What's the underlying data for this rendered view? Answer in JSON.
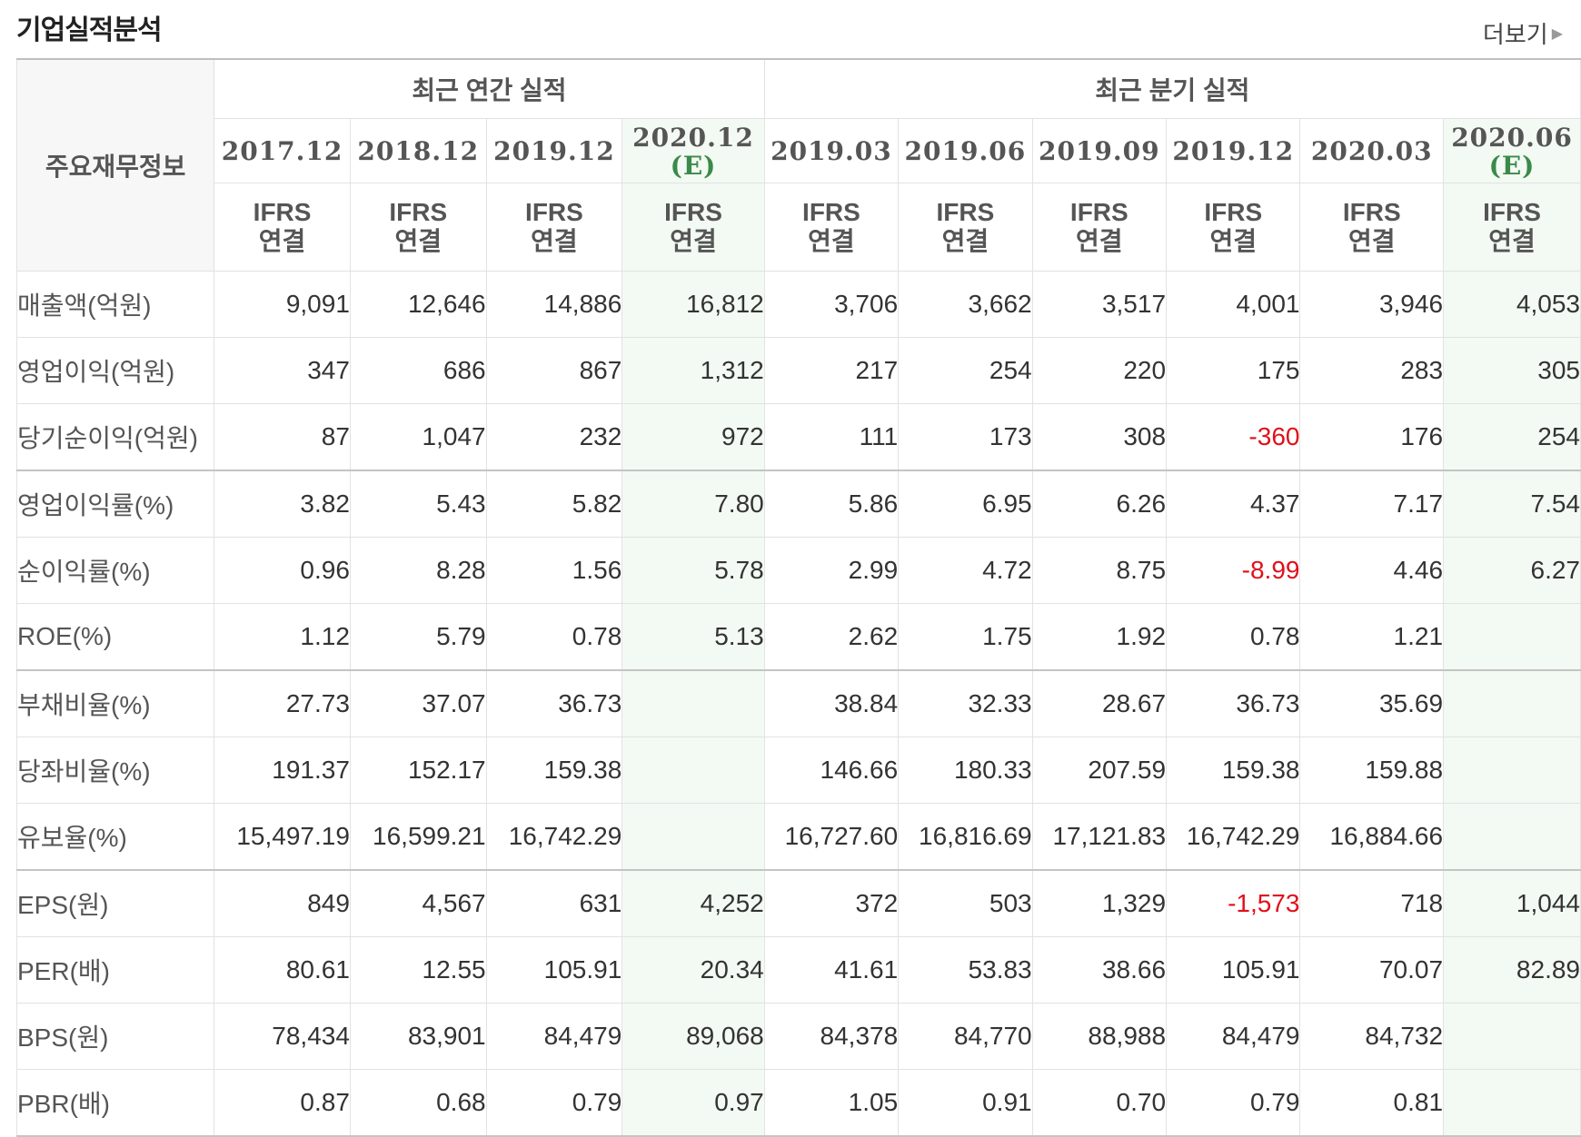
{
  "page": {
    "title": "기업실적분석",
    "more_label": "더보기"
  },
  "table": {
    "row_header_label": "주요재무정보",
    "group_annual": "최근 연간 실적",
    "group_quarterly": "최근 분기 실적",
    "periods": [
      {
        "date": "2017.12",
        "est": ""
      },
      {
        "date": "2018.12",
        "est": ""
      },
      {
        "date": "2019.12",
        "est": ""
      },
      {
        "date": "2020.12",
        "est": "(E)"
      },
      {
        "date": "2019.03",
        "est": ""
      },
      {
        "date": "2019.06",
        "est": ""
      },
      {
        "date": "2019.09",
        "est": ""
      },
      {
        "date": "2019.12",
        "est": ""
      },
      {
        "date": "2020.03",
        "est": ""
      },
      {
        "date": "2020.06",
        "est": "(E)"
      }
    ],
    "ifrs_line1": "IFRS",
    "ifrs_line2": "연결",
    "rows": [
      {
        "label": "매출액(억원)",
        "values": [
          "9,091",
          "12,646",
          "14,886",
          "16,812",
          "3,706",
          "3,662",
          "3,517",
          "4,001",
          "3,946",
          "4,053"
        ]
      },
      {
        "label": "영업이익(억원)",
        "values": [
          "347",
          "686",
          "867",
          "1,312",
          "217",
          "254",
          "220",
          "175",
          "283",
          "305"
        ]
      },
      {
        "label": "당기순이익(억원)",
        "values": [
          "87",
          "1,047",
          "232",
          "972",
          "111",
          "173",
          "308",
          "-360",
          "176",
          "254"
        ]
      },
      {
        "label": "영업이익률(%)",
        "values": [
          "3.82",
          "5.43",
          "5.82",
          "7.80",
          "5.86",
          "6.95",
          "6.26",
          "4.37",
          "7.17",
          "7.54"
        ]
      },
      {
        "label": "순이익률(%)",
        "values": [
          "0.96",
          "8.28",
          "1.56",
          "5.78",
          "2.99",
          "4.72",
          "8.75",
          "-8.99",
          "4.46",
          "6.27"
        ]
      },
      {
        "label": "ROE(%)",
        "values": [
          "1.12",
          "5.79",
          "0.78",
          "5.13",
          "2.62",
          "1.75",
          "1.92",
          "0.78",
          "1.21",
          ""
        ]
      },
      {
        "label": "부채비율(%)",
        "values": [
          "27.73",
          "37.07",
          "36.73",
          "",
          "38.84",
          "32.33",
          "28.67",
          "36.73",
          "35.69",
          ""
        ]
      },
      {
        "label": "당좌비율(%)",
        "values": [
          "191.37",
          "152.17",
          "159.38",
          "",
          "146.66",
          "180.33",
          "207.59",
          "159.38",
          "159.88",
          ""
        ]
      },
      {
        "label": "유보율(%)",
        "values": [
          "15,497.19",
          "16,599.21",
          "16,742.29",
          "",
          "16,727.60",
          "16,816.69",
          "17,121.83",
          "16,742.29",
          "16,884.66",
          ""
        ]
      },
      {
        "label": "EPS(원)",
        "values": [
          "849",
          "4,567",
          "631",
          "4,252",
          "372",
          "503",
          "1,329",
          "-1,573",
          "718",
          "1,044"
        ]
      },
      {
        "label": "PER(배)",
        "values": [
          "80.61",
          "12.55",
          "105.91",
          "20.34",
          "41.61",
          "53.83",
          "38.66",
          "105.91",
          "70.07",
          "82.89"
        ]
      },
      {
        "label": "BPS(원)",
        "values": [
          "78,434",
          "83,901",
          "84,479",
          "89,068",
          "84,378",
          "84,770",
          "88,988",
          "84,479",
          "84,732",
          ""
        ]
      },
      {
        "label": "PBR(배)",
        "values": [
          "0.87",
          "0.68",
          "0.79",
          "0.97",
          "1.05",
          "0.91",
          "0.70",
          "0.79",
          "0.81",
          ""
        ]
      }
    ]
  },
  "colors": {
    "ifrs_text": "#ef6f3a",
    "estimate_text": "#3a8a4a",
    "estimate_bg": "#f3f9f3",
    "negative_text": "#e0101a"
  }
}
